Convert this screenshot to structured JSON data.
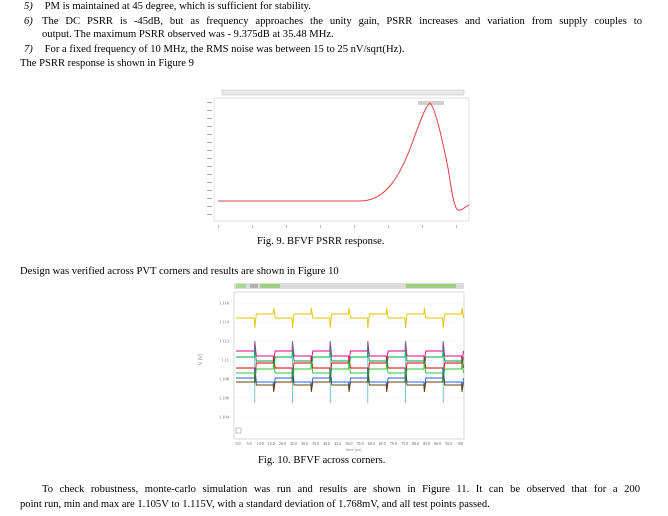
{
  "items": [
    {
      "num": "5)",
      "text": "PM is maintained at 45 degree, which is sufficient for stability."
    },
    {
      "num": "6)",
      "text_line1": "The DC PSRR is -45dB, but as frequency approaches the unity gain, PSRR increases and variation from supply couples to",
      "text_line2": "output. The maximum PSRR observed was - 9.375dB at 35.48 MHz."
    },
    {
      "num": "7)",
      "text": "For a fixed frequency of 10 MHz, the RMS noise was between 15 to 25 nV/sqrt(Hz)."
    }
  ],
  "psrr_intro": "The PSRR response is shown in Figure 9",
  "fig9": {
    "caption": "Fig. 9.  BFVF PSRR response."
  },
  "pvt_intro": "Design was verified across PVT corners and results are shown in Figure 10",
  "fig10": {
    "caption": "Fig. 10.  BFVF across corners.",
    "y_ticks": [
      "1.116",
      "1.114",
      "1.112",
      "1.11",
      "1.108",
      "1.106",
      "1.104"
    ],
    "x_ticks": [
      "0.0",
      "5.0",
      "10.0",
      "15.0",
      "20.0",
      "25.0",
      "30.0",
      "35.0",
      "40.0",
      "45.0",
      "50.0",
      "55.0",
      "60.0",
      "65.0",
      "70.0",
      "75.0",
      "80.0",
      "85.0",
      "90.0",
      "95.0",
      "100"
    ],
    "trace_colors": [
      "#e6c200",
      "#e4007f",
      "#d40000",
      "#00a050",
      "#2060ff",
      "#30c030",
      "#604000"
    ]
  },
  "conclusion": {
    "line1": "To check robustness, monte-carlo simulation was run and results are shown in Figure 11. It can be observed that for a 200",
    "line2": "point run, min and max are 1.105V to 1.115V, with a standard deviation of 1.768mV, and all test points passed."
  }
}
